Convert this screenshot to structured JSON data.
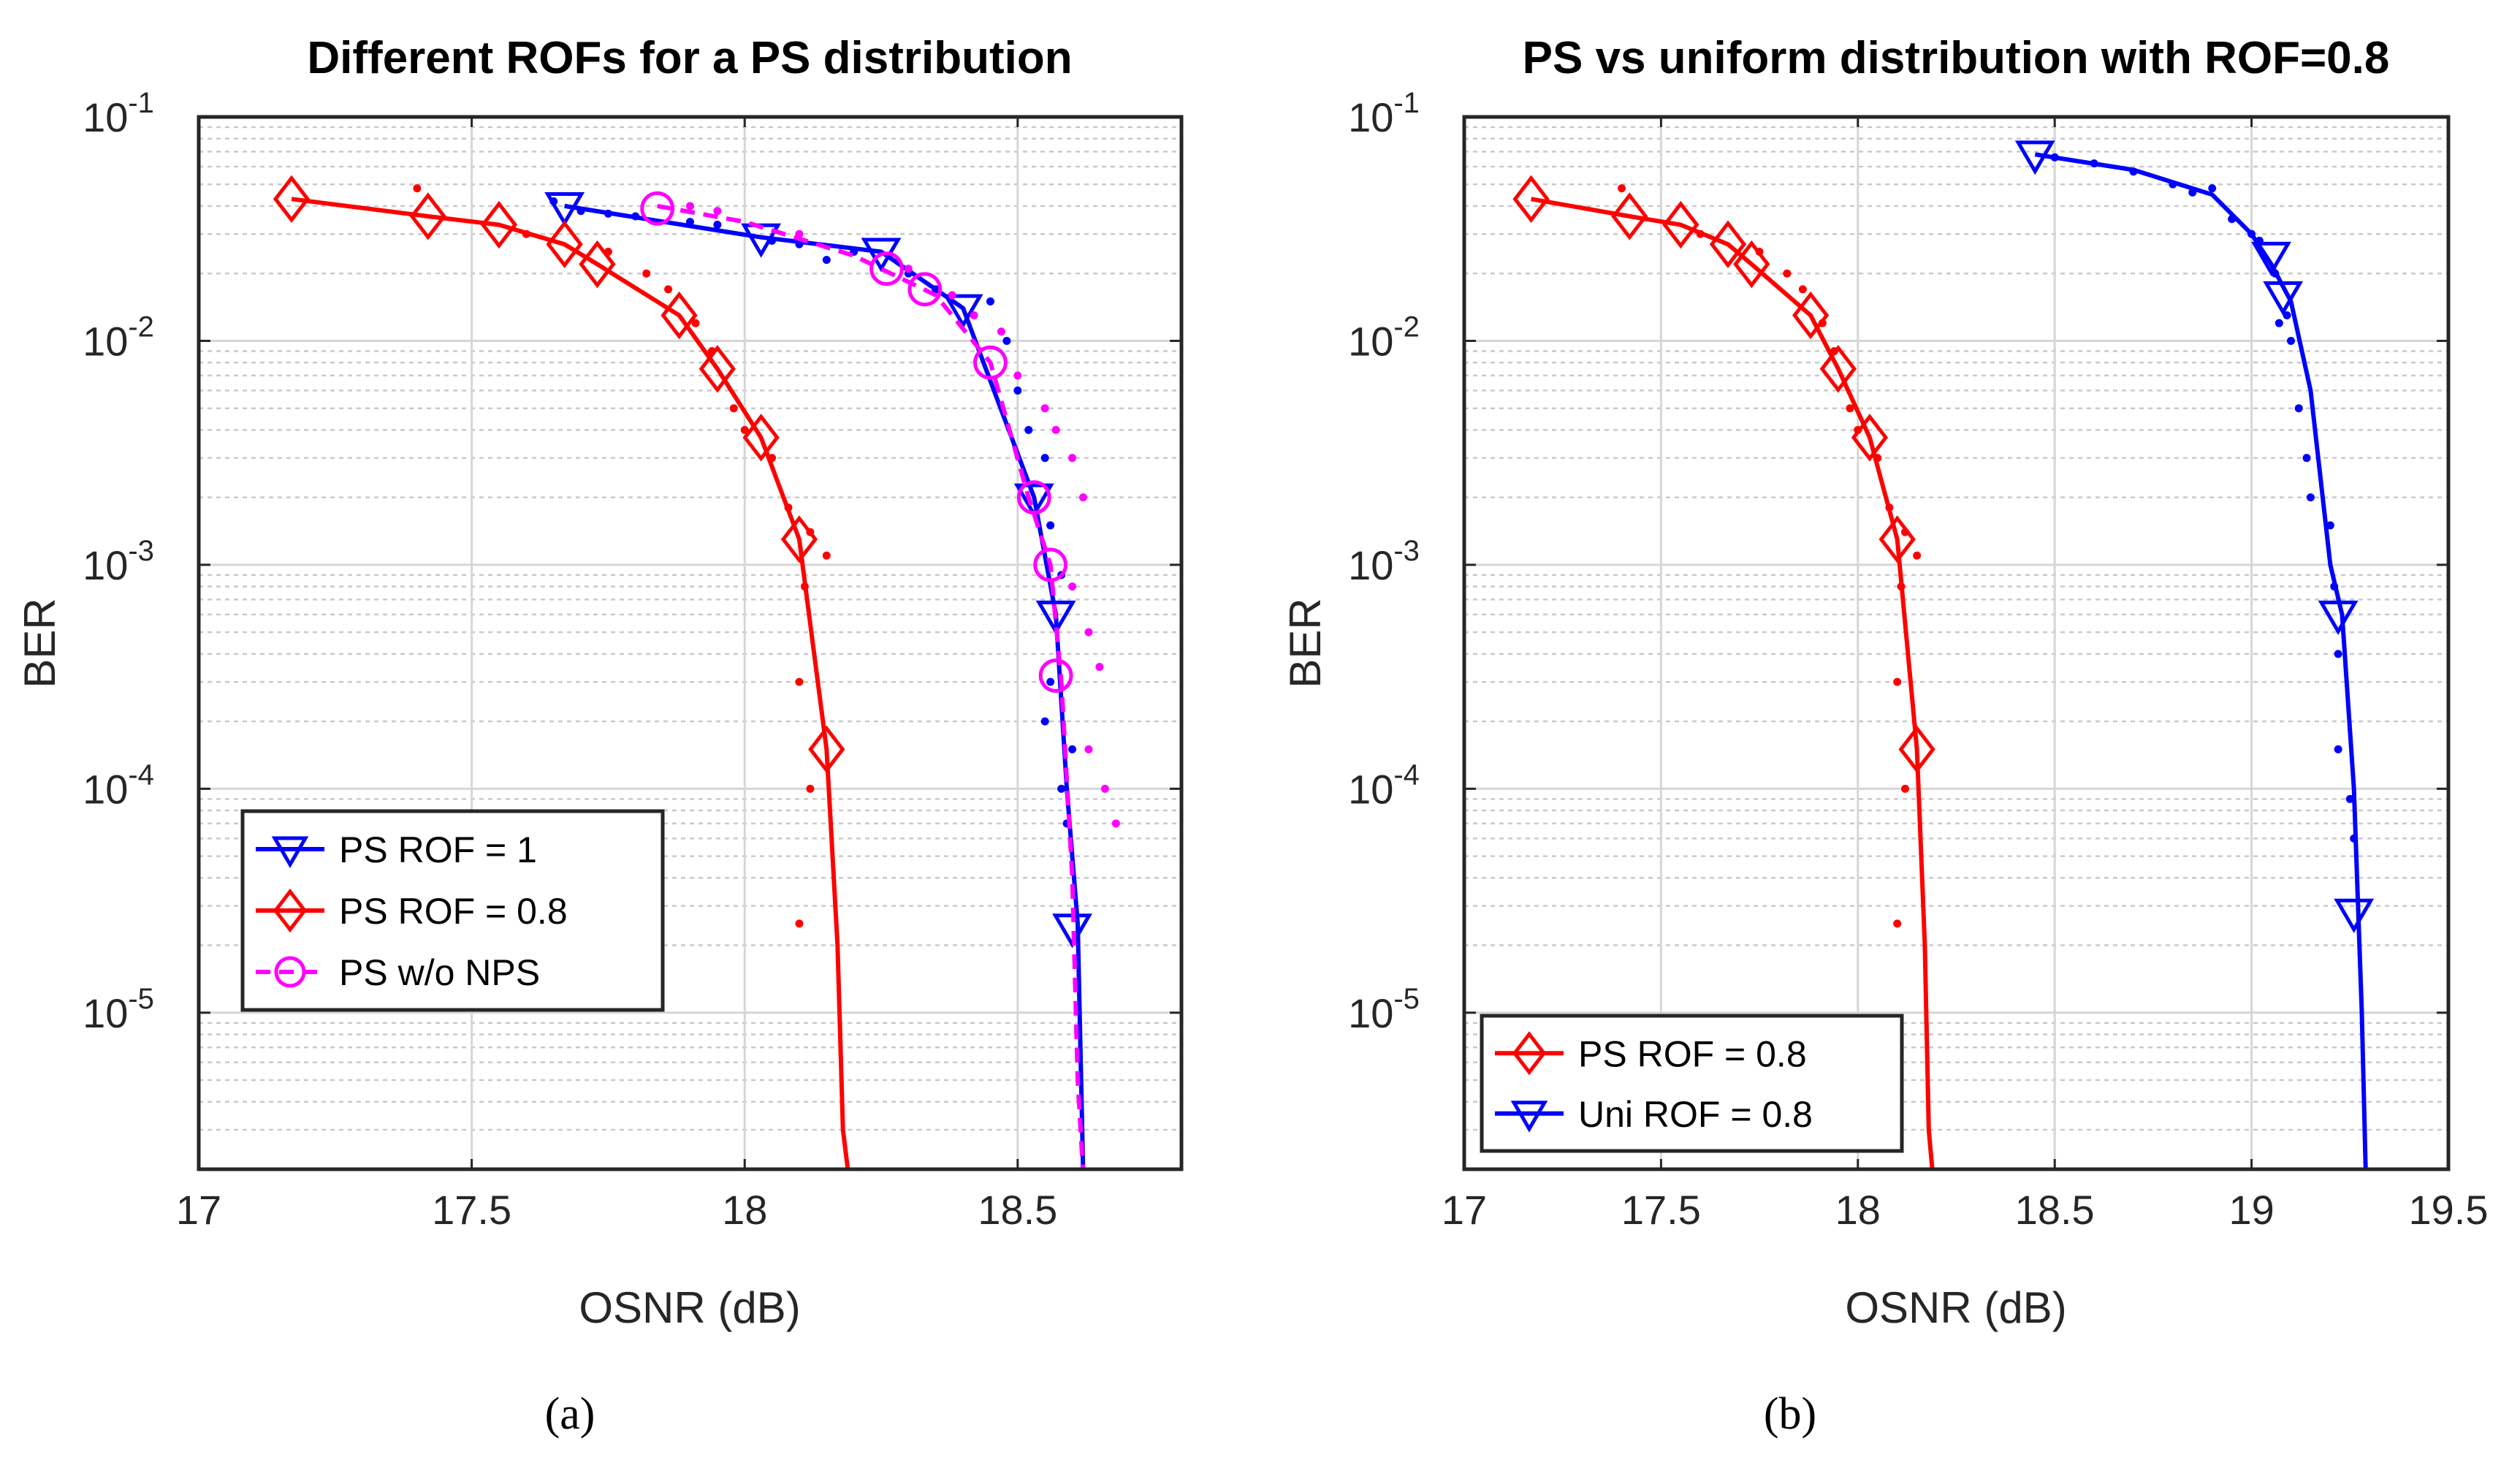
{
  "chart_data": [
    {
      "type": "line",
      "panel_label": "(a)",
      "title": "Different ROFs for a PS distribution",
      "xlabel": "OSNR (dB)",
      "ylabel": "BER",
      "xlim": [
        17,
        18.8
      ],
      "ylim": [
        2e-06,
        0.1
      ],
      "yscale": "log",
      "xticks": [
        "17",
        "17.5",
        "18",
        "18.5"
      ],
      "xtick_values": [
        17,
        17.5,
        18,
        18.5
      ],
      "yticks": [
        {
          "base": "10",
          "exp": "-1",
          "value": 0.1
        },
        {
          "base": "10",
          "exp": "-2",
          "value": 0.01
        },
        {
          "base": "10",
          "exp": "-3",
          "value": 0.001
        },
        {
          "base": "10",
          "exp": "-4",
          "value": 0.0001
        },
        {
          "base": "10",
          "exp": "-5",
          "value": 1e-05
        }
      ],
      "grid": true,
      "legend_position": "bottom-left",
      "series": [
        {
          "name": "PS ROF = 1",
          "color": "#0000ff",
          "marker": "triangle-down",
          "dashed": false,
          "x": [
            17.67,
            18.03,
            18.25,
            18.4,
            18.53,
            18.57,
            18.59,
            18.61,
            18.62
          ],
          "y": [
            0.04,
            0.029,
            0.025,
            0.014,
            0.002,
            0.0006,
            0.0001,
            2.5e-05,
            1.9e-06
          ],
          "markers": [
            [
              17.67,
              0.04
            ],
            [
              18.03,
              0.029
            ],
            [
              18.25,
              0.025
            ],
            [
              18.4,
              0.014
            ],
            [
              18.53,
              0.002
            ],
            [
              18.57,
              0.0006
            ],
            [
              18.6,
              2.4e-05
            ]
          ],
          "scatter": [
            [
              17.65,
              0.042
            ],
            [
              17.7,
              0.038
            ],
            [
              17.75,
              0.037
            ],
            [
              17.8,
              0.036
            ],
            [
              17.9,
              0.034
            ],
            [
              17.95,
              0.033
            ],
            [
              18.05,
              0.028
            ],
            [
              18.1,
              0.027
            ],
            [
              18.15,
              0.023
            ],
            [
              18.2,
              0.025
            ],
            [
              18.3,
              0.02
            ],
            [
              18.35,
              0.017
            ],
            [
              18.45,
              0.015
            ],
            [
              18.48,
              0.01
            ],
            [
              18.5,
              0.006
            ],
            [
              18.52,
              0.004
            ],
            [
              18.55,
              0.003
            ],
            [
              18.56,
              0.0015
            ],
            [
              18.58,
              0.0009
            ],
            [
              18.56,
              0.0003
            ],
            [
              18.55,
              0.0002
            ],
            [
              18.6,
              0.00015
            ],
            [
              18.58,
              0.0001
            ],
            [
              18.59,
              7e-05
            ]
          ]
        },
        {
          "name": "PS ROF = 0.8",
          "color": "#ff0000",
          "marker": "diamond",
          "dashed": false,
          "x": [
            17.17,
            17.42,
            17.55,
            17.67,
            17.73,
            17.88,
            17.95,
            18.03,
            18.1,
            18.15,
            18.17,
            18.18,
            18.19
          ],
          "y": [
            0.043,
            0.036,
            0.033,
            0.027,
            0.022,
            0.013,
            0.0075,
            0.0037,
            0.0013,
            0.00015,
            2e-05,
            3e-06,
            1.9e-06
          ],
          "markers": [
            [
              17.17,
              0.043
            ],
            [
              17.42,
              0.036
            ],
            [
              17.55,
              0.033
            ],
            [
              17.67,
              0.027
            ],
            [
              17.73,
              0.022
            ],
            [
              17.88,
              0.013
            ],
            [
              17.95,
              0.0075
            ],
            [
              18.03,
              0.0037
            ],
            [
              18.1,
              0.0013
            ],
            [
              18.15,
              0.00015
            ]
          ],
          "scatter": [
            [
              17.4,
              0.048
            ],
            [
              17.6,
              0.03
            ],
            [
              17.75,
              0.025
            ],
            [
              17.82,
              0.02
            ],
            [
              17.86,
              0.017
            ],
            [
              17.91,
              0.012
            ],
            [
              17.94,
              0.009
            ],
            [
              17.98,
              0.005
            ],
            [
              18.0,
              0.004
            ],
            [
              18.05,
              0.003
            ],
            [
              18.08,
              0.0018
            ],
            [
              18.12,
              0.0014
            ],
            [
              18.15,
              0.0011
            ],
            [
              18.11,
              0.0008
            ],
            [
              18.1,
              0.0003
            ],
            [
              18.12,
              0.0001
            ],
            [
              18.1,
              2.5e-05
            ]
          ]
        },
        {
          "name": "PS w/o NPS",
          "color": "#ff00ff",
          "marker": "circle",
          "dashed": true,
          "x": [
            17.84,
            18.0,
            18.2,
            18.35,
            18.45,
            18.52,
            18.56,
            18.58,
            18.6,
            18.61,
            18.62
          ],
          "y": [
            0.04,
            0.034,
            0.024,
            0.016,
            0.008,
            0.002,
            0.001,
            0.0003,
            4e-05,
            5e-06,
            1.9e-06
          ],
          "markers": [
            [
              17.84,
              0.039
            ],
            [
              18.26,
              0.021
            ],
            [
              18.33,
              0.017
            ],
            [
              18.45,
              0.008
            ],
            [
              18.53,
              0.002
            ],
            [
              18.56,
              0.001
            ],
            [
              18.57,
              0.00032
            ]
          ],
          "scatter": [
            [
              17.9,
              0.04
            ],
            [
              17.95,
              0.038
            ],
            [
              18.1,
              0.03
            ],
            [
              18.3,
              0.021
            ],
            [
              18.38,
              0.016
            ],
            [
              18.42,
              0.013
            ],
            [
              18.47,
              0.011
            ],
            [
              18.5,
              0.007
            ],
            [
              18.55,
              0.005
            ],
            [
              18.57,
              0.004
            ],
            [
              18.6,
              0.003
            ],
            [
              18.62,
              0.002
            ],
            [
              18.6,
              0.0008
            ],
            [
              18.63,
              0.0005
            ],
            [
              18.65,
              0.00035
            ],
            [
              18.63,
              0.00015
            ],
            [
              18.66,
              0.0001
            ],
            [
              18.68,
              7e-05
            ]
          ]
        }
      ]
    },
    {
      "type": "line",
      "panel_label": "(b)",
      "title": "PS vs uniform distribution with ROF=0.8",
      "xlabel": "OSNR (dB)",
      "ylabel": "BER",
      "xlim": [
        17,
        19.5
      ],
      "ylim": [
        2e-06,
        0.1
      ],
      "yscale": "log",
      "xticks": [
        "17",
        "17.5",
        "18",
        "18.5",
        "19",
        "19.5"
      ],
      "xtick_values": [
        17,
        17.5,
        18,
        18.5,
        19,
        19.5
      ],
      "yticks": [
        {
          "base": "10",
          "exp": "-1",
          "value": 0.1
        },
        {
          "base": "10",
          "exp": "-2",
          "value": 0.01
        },
        {
          "base": "10",
          "exp": "-3",
          "value": 0.001
        },
        {
          "base": "10",
          "exp": "-4",
          "value": 0.0001
        },
        {
          "base": "10",
          "exp": "-5",
          "value": 1e-05
        }
      ],
      "grid": true,
      "legend_position": "bottom-left",
      "series": [
        {
          "name": "PS ROF = 0.8",
          "color": "#ff0000",
          "marker": "diamond",
          "dashed": false,
          "x": [
            17.17,
            17.42,
            17.55,
            17.67,
            17.73,
            17.88,
            17.95,
            18.03,
            18.1,
            18.15,
            18.17,
            18.18,
            18.19
          ],
          "y": [
            0.043,
            0.036,
            0.033,
            0.027,
            0.022,
            0.013,
            0.0075,
            0.0037,
            0.0013,
            0.00015,
            2e-05,
            3e-06,
            1.9e-06
          ],
          "markers": [
            [
              17.17,
              0.043
            ],
            [
              17.42,
              0.036
            ],
            [
              17.55,
              0.033
            ],
            [
              17.67,
              0.027
            ],
            [
              17.73,
              0.022
            ],
            [
              17.88,
              0.013
            ],
            [
              17.95,
              0.0075
            ],
            [
              18.03,
              0.0037
            ],
            [
              18.1,
              0.0013
            ],
            [
              18.15,
              0.00015
            ]
          ],
          "scatter": [
            [
              17.4,
              0.048
            ],
            [
              17.6,
              0.03
            ],
            [
              17.75,
              0.025
            ],
            [
              17.82,
              0.02
            ],
            [
              17.86,
              0.017
            ],
            [
              17.91,
              0.012
            ],
            [
              17.94,
              0.009
            ],
            [
              17.98,
              0.005
            ],
            [
              18.0,
              0.004
            ],
            [
              18.05,
              0.003
            ],
            [
              18.08,
              0.0018
            ],
            [
              18.12,
              0.0014
            ],
            [
              18.15,
              0.0011
            ],
            [
              18.11,
              0.0008
            ],
            [
              18.1,
              0.0003
            ],
            [
              18.12,
              0.0001
            ],
            [
              18.1,
              2.5e-05
            ]
          ]
        },
        {
          "name": "Uni ROF = 0.8",
          "color": "#0000ff",
          "marker": "triangle-down",
          "dashed": false,
          "x": [
            18.45,
            18.7,
            18.9,
            19.0,
            19.05,
            19.1,
            19.15,
            19.2,
            19.23,
            19.26,
            19.28,
            19.29
          ],
          "y": [
            0.068,
            0.058,
            0.045,
            0.03,
            0.022,
            0.015,
            0.006,
            0.001,
            0.0006,
            0.0001,
            1e-05,
            1.9e-06
          ],
          "markers": [
            [
              18.45,
              0.068
            ],
            [
              19.05,
              0.024
            ],
            [
              19.08,
              0.016
            ],
            [
              19.22,
              0.0006
            ],
            [
              19.26,
              2.8e-05
            ]
          ],
          "scatter": [
            [
              18.5,
              0.066
            ],
            [
              18.6,
              0.062
            ],
            [
              18.7,
              0.057
            ],
            [
              18.8,
              0.05
            ],
            [
              18.85,
              0.046
            ],
            [
              18.9,
              0.048
            ],
            [
              18.95,
              0.035
            ],
            [
              19.0,
              0.03
            ],
            [
              19.02,
              0.028
            ],
            [
              19.06,
              0.02
            ],
            [
              19.07,
              0.012
            ],
            [
              19.09,
              0.013
            ],
            [
              19.1,
              0.01
            ],
            [
              19.12,
              0.005
            ],
            [
              19.14,
              0.003
            ],
            [
              19.15,
              0.002
            ],
            [
              19.2,
              0.0015
            ],
            [
              19.21,
              0.0008
            ],
            [
              19.22,
              0.0004
            ],
            [
              19.22,
              0.00015
            ],
            [
              19.25,
              9e-05
            ],
            [
              19.26,
              6e-05
            ]
          ]
        }
      ]
    }
  ]
}
